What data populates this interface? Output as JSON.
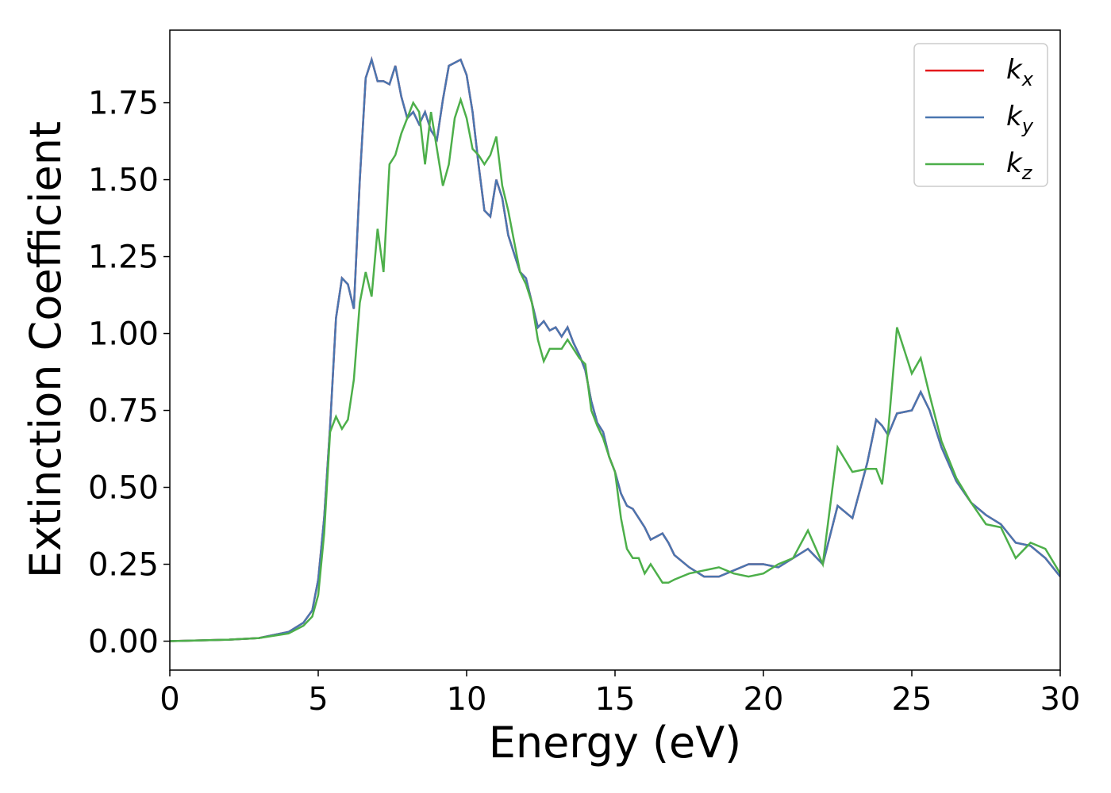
{
  "chart_data": {
    "type": "line",
    "xlabel": "Energy (eV)",
    "ylabel": "Extinction Coefficient",
    "x": [
      0,
      2,
      3,
      4,
      4.5,
      4.8,
      5.0,
      5.2,
      5.4,
      5.6,
      5.8,
      6.0,
      6.2,
      6.4,
      6.6,
      6.8,
      7.0,
      7.2,
      7.4,
      7.6,
      7.8,
      8.0,
      8.2,
      8.4,
      8.6,
      8.8,
      9.0,
      9.2,
      9.4,
      9.6,
      9.8,
      10.0,
      10.2,
      10.4,
      10.6,
      10.8,
      11.0,
      11.2,
      11.4,
      11.6,
      11.8,
      12.0,
      12.2,
      12.4,
      12.6,
      12.8,
      13.0,
      13.2,
      13.4,
      13.6,
      13.8,
      14.0,
      14.2,
      14.4,
      14.6,
      14.8,
      15.0,
      15.2,
      15.4,
      15.6,
      15.8,
      16.0,
      16.2,
      16.4,
      16.6,
      16.8,
      17.0,
      17.5,
      18.0,
      18.5,
      19.0,
      19.5,
      20.0,
      20.5,
      21.0,
      21.5,
      22.0,
      22.5,
      23.0,
      23.5,
      23.8,
      24.0,
      24.2,
      24.5,
      25.0,
      25.3,
      25.6,
      26.0,
      26.5,
      27.0,
      27.5,
      28.0,
      28.5,
      29.0,
      29.5,
      30.0
    ],
    "series": [
      {
        "name": "kx",
        "color": "#e41a1c",
        "values": [
          0,
          0.005,
          0.01,
          0.03,
          0.06,
          0.1,
          0.2,
          0.4,
          0.7,
          1.05,
          1.18,
          1.16,
          1.08,
          1.5,
          1.83,
          1.89,
          1.82,
          1.82,
          1.81,
          1.87,
          1.77,
          1.7,
          1.72,
          1.68,
          1.72,
          1.66,
          1.63,
          1.76,
          1.87,
          1.88,
          1.89,
          1.84,
          1.72,
          1.55,
          1.4,
          1.38,
          1.5,
          1.44,
          1.32,
          1.26,
          1.2,
          1.18,
          1.1,
          1.02,
          1.04,
          1.01,
          1.02,
          0.99,
          1.02,
          0.97,
          0.93,
          0.88,
          0.78,
          0.71,
          0.68,
          0.6,
          0.55,
          0.48,
          0.44,
          0.43,
          0.4,
          0.37,
          0.33,
          0.34,
          0.35,
          0.32,
          0.28,
          0.24,
          0.21,
          0.21,
          0.23,
          0.25,
          0.25,
          0.24,
          0.27,
          0.3,
          0.25,
          0.44,
          0.4,
          0.58,
          0.72,
          0.7,
          0.67,
          0.74,
          0.75,
          0.81,
          0.75,
          0.63,
          0.52,
          0.45,
          0.41,
          0.38,
          0.32,
          0.31,
          0.27,
          0.21
        ]
      },
      {
        "name": "ky",
        "color": "#4a76b0",
        "values": [
          0,
          0.005,
          0.01,
          0.03,
          0.06,
          0.1,
          0.2,
          0.4,
          0.7,
          1.05,
          1.18,
          1.16,
          1.08,
          1.5,
          1.83,
          1.89,
          1.82,
          1.82,
          1.81,
          1.87,
          1.77,
          1.7,
          1.72,
          1.68,
          1.72,
          1.66,
          1.63,
          1.76,
          1.87,
          1.88,
          1.89,
          1.84,
          1.72,
          1.55,
          1.4,
          1.38,
          1.5,
          1.44,
          1.32,
          1.26,
          1.2,
          1.18,
          1.1,
          1.02,
          1.04,
          1.01,
          1.02,
          0.99,
          1.02,
          0.97,
          0.93,
          0.88,
          0.78,
          0.71,
          0.68,
          0.6,
          0.55,
          0.48,
          0.44,
          0.43,
          0.4,
          0.37,
          0.33,
          0.34,
          0.35,
          0.32,
          0.28,
          0.24,
          0.21,
          0.21,
          0.23,
          0.25,
          0.25,
          0.24,
          0.27,
          0.3,
          0.25,
          0.44,
          0.4,
          0.58,
          0.72,
          0.7,
          0.67,
          0.74,
          0.75,
          0.81,
          0.75,
          0.63,
          0.52,
          0.45,
          0.41,
          0.38,
          0.32,
          0.31,
          0.27,
          0.21
        ]
      },
      {
        "name": "kz",
        "color": "#4daf4a",
        "values": [
          0,
          0.005,
          0.01,
          0.025,
          0.05,
          0.08,
          0.15,
          0.35,
          0.68,
          0.73,
          0.69,
          0.72,
          0.85,
          1.1,
          1.2,
          1.12,
          1.34,
          1.2,
          1.55,
          1.58,
          1.65,
          1.7,
          1.75,
          1.72,
          1.55,
          1.72,
          1.6,
          1.48,
          1.55,
          1.7,
          1.76,
          1.7,
          1.6,
          1.58,
          1.55,
          1.58,
          1.64,
          1.48,
          1.4,
          1.3,
          1.2,
          1.16,
          1.1,
          0.98,
          0.91,
          0.95,
          0.95,
          0.95,
          0.98,
          0.95,
          0.92,
          0.9,
          0.75,
          0.7,
          0.66,
          0.6,
          0.55,
          0.4,
          0.3,
          0.27,
          0.27,
          0.22,
          0.25,
          0.22,
          0.19,
          0.19,
          0.2,
          0.22,
          0.23,
          0.24,
          0.22,
          0.21,
          0.22,
          0.25,
          0.27,
          0.36,
          0.25,
          0.63,
          0.55,
          0.56,
          0.56,
          0.51,
          0.68,
          1.02,
          0.87,
          0.92,
          0.8,
          0.65,
          0.53,
          0.45,
          0.38,
          0.37,
          0.27,
          0.32,
          0.3,
          0.22
        ]
      }
    ],
    "xlim": [
      0,
      30
    ],
    "xticks": [
      0,
      5,
      10,
      15,
      20,
      25,
      30
    ],
    "ylim": [
      -0.094,
      1.986
    ],
    "yticks": [
      {
        "value": 0,
        "label": "0.00"
      },
      {
        "value": 0.25,
        "label": "0.25"
      },
      {
        "value": 0.5,
        "label": "0.50"
      },
      {
        "value": 0.75,
        "label": "0.75"
      },
      {
        "value": 1,
        "label": "1.00"
      },
      {
        "value": 1.25,
        "label": "1.25"
      },
      {
        "value": 1.5,
        "label": "1.50"
      },
      {
        "value": 1.75,
        "label": "1.75"
      }
    ],
    "legend": "upper right",
    "grid": false
  }
}
